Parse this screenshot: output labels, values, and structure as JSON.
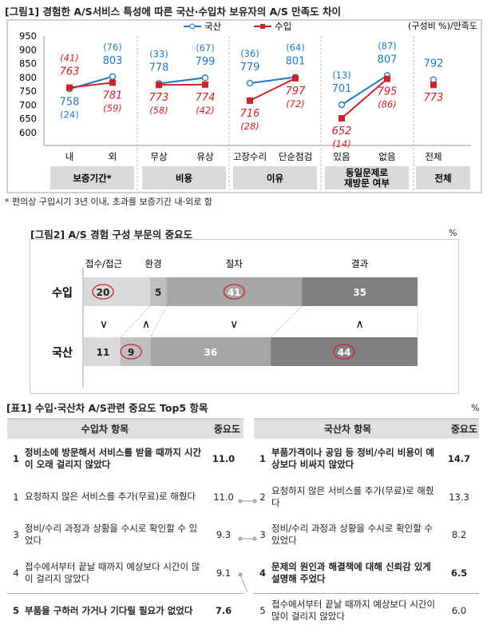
{
  "fig1": {
    "title": "[그림1] 경험한 A/S서비스 특성에 따른 국산·수입차 보유자의 A/S 만족도 차이",
    "unit": "(구성비 %)/만족도",
    "footnote": "* 편의상 구입시기 3년 이내, 초과를 보증기간 내·외로 함"
  },
  "fig2": {
    "title": "[그림2] A/S 경험 구성 부문의 중요도",
    "unit": "%"
  },
  "table": {
    "title": "[표1] 수입·국산차 A/S관련 중요도 Top5 항목",
    "unit": "%",
    "left": {
      "header": "수입차 항목",
      "score_header": "중요도",
      "rows": [
        {
          "rank": "1",
          "text": "정비소에 방문해서 서비스를 받을 때까지 시간이 오래 걸리지 않았다",
          "score": "11.0",
          "bold": true
        },
        {
          "rank": "1",
          "text": "요청하지 않은 서비스를 추가(무료)로 해줬다",
          "score": "11.0",
          "bold": false
        },
        {
          "rank": "3",
          "text": "정비/수리 과정과 상황을 수시로 확인할 수 있었다",
          "score": "9.3",
          "bold": false
        },
        {
          "rank": "4",
          "text": "접수에서부터 끝날 때까지 예상보다 시간이 많이 걸리지 않았다",
          "score": "9.1",
          "bold": false
        },
        {
          "rank": "5",
          "text": "부품을 구하러 가거나 기다릴 필요가 없었다",
          "score": "7.6",
          "bold": true
        }
      ]
    },
    "right": {
      "header": "국산차 항목",
      "score_header": "중요도",
      "rows": [
        {
          "rank": "1",
          "text": "부품가격이나 공임 등 정비/수리 비용이 예상보다 비싸지 않았다",
          "score": "14.7",
          "bold": true
        },
        {
          "rank": "2",
          "text": "요청하지 않은 서비스를 추가(무료)로 해줬다",
          "score": "13.3",
          "bold": false
        },
        {
          "rank": "3",
          "text": "정비/수리 과정과 상황을 수시로 확인할 수 있었다",
          "score": "8.2",
          "bold": false
        },
        {
          "rank": "4",
          "text": "문제의 원인과 해결책에 대해 신뢰감 있게 설명해 주었다",
          "score": "6.5",
          "bold": true
        },
        {
          "rank": "5",
          "text": "접수에서부터 끝날 때까지 예상보다 시간이 많이 걸리지 않았다",
          "score": "6.0",
          "bold": false
        }
      ]
    }
  },
  "chart_data": [
    {
      "type": "line",
      "title": "[그림1] 경험한 A/S서비스 특성에 따른 국산·수입차 보유자의 A/S 만족도 차이",
      "yticks": [
        600,
        650,
        700,
        750,
        800,
        850,
        900,
        950
      ],
      "ylim": [
        600,
        950
      ],
      "categories": [
        "내",
        "외",
        "무상",
        "유상",
        "고장수리",
        "단순점검",
        "있음",
        "없음",
        "전체"
      ],
      "groups": [
        {
          "label": "보증기간*",
          "members": [
            0,
            1
          ]
        },
        {
          "label": "비용",
          "members": [
            2,
            3
          ]
        },
        {
          "label": "이유",
          "members": [
            4,
            5
          ]
        },
        {
          "label": "동일문제로 재방문 여부",
          "members": [
            6,
            7
          ]
        },
        {
          "label": "전체",
          "members": [
            8
          ]
        }
      ],
      "legend": "top-center",
      "series": [
        {
          "name": "국산",
          "color": "#1f78c1",
          "values": [
            758,
            803,
            778,
            799,
            779,
            801,
            701,
            807,
            792
          ],
          "shares": [
            "(24)",
            "(76)",
            "(33)",
            "(67)",
            "(36)",
            "(64)",
            "(13)",
            "(87)",
            ""
          ]
        },
        {
          "name": "수입",
          "color": "#d0202a",
          "values": [
            763,
            781,
            773,
            774,
            716,
            797,
            652,
            795,
            773
          ],
          "shares": [
            "(41)",
            "(59)",
            "(58)",
            "(42)",
            "(28)",
            "(72)",
            "(14)",
            "(86)",
            ""
          ]
        }
      ]
    },
    {
      "type": "bar",
      "stacked": true,
      "title": "[그림2] A/S 경험 구성 부문의 중요도",
      "categories": [
        "접수/접근",
        "환경",
        "절차",
        "결과"
      ],
      "series": [
        {
          "name": "수입",
          "values": [
            20,
            5,
            41,
            35
          ],
          "circled": [
            true,
            false,
            true,
            false
          ]
        },
        {
          "name": "국산",
          "values": [
            11,
            9,
            36,
            44
          ],
          "circled": [
            false,
            true,
            false,
            true
          ]
        }
      ],
      "comparisons": [
        "∨",
        "∧",
        "∨",
        "∧"
      ]
    }
  ]
}
